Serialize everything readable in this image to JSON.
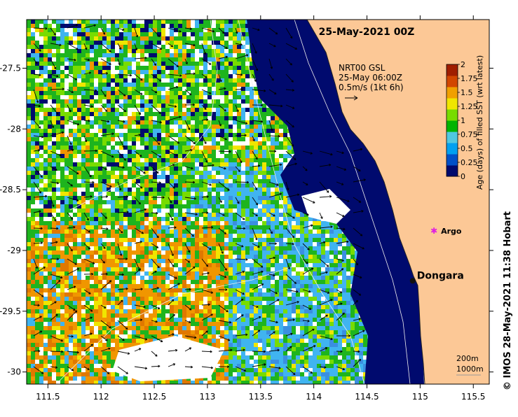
{
  "map": {
    "title": "25-May-2021 00Z",
    "current_note": {
      "line1": "NRT00 GSL",
      "line2": "25-May 06:00Z",
      "line3": "0.5m/s (1kt 6h)"
    },
    "lon_ticks": [
      "111.5",
      "112",
      "112.5",
      "113",
      "113.5",
      "114",
      "114.5",
      "115",
      "115.5"
    ],
    "lat_ticks": [
      "-27.5",
      "-28",
      "-28.5",
      "-29",
      "-29.5",
      "-30"
    ],
    "lon_range": [
      111.3,
      115.65
    ],
    "lat_range": [
      -27.1,
      -30.1
    ],
    "places": [
      {
        "name": "Dongara",
        "lon": 114.93,
        "lat": -29.25
      },
      {
        "name": "Argo",
        "lon": 115.13,
        "lat": -28.84
      }
    ],
    "depth_legend": [
      "200m",
      "1000m"
    ],
    "colorbar": {
      "label": "Age (days) of filled SST (wrt latest)",
      "ticks": [
        "0",
        "0.25",
        "0.5",
        "0.75",
        "1",
        "1.25",
        "1.5",
        "1.75",
        "2"
      ],
      "colors": [
        "#000a6e",
        "#0050c8",
        "#00a0f0",
        "#50c8e0",
        "#00b400",
        "#78dc00",
        "#f0e600",
        "#f0a000",
        "#d24600",
        "#a01e00"
      ]
    },
    "credit": "©  IMOS 28-May-2021 11:38 Hobart",
    "colors": {
      "land": "#fcc896",
      "deep": "#000a6e",
      "white": "#ffffff"
    }
  }
}
